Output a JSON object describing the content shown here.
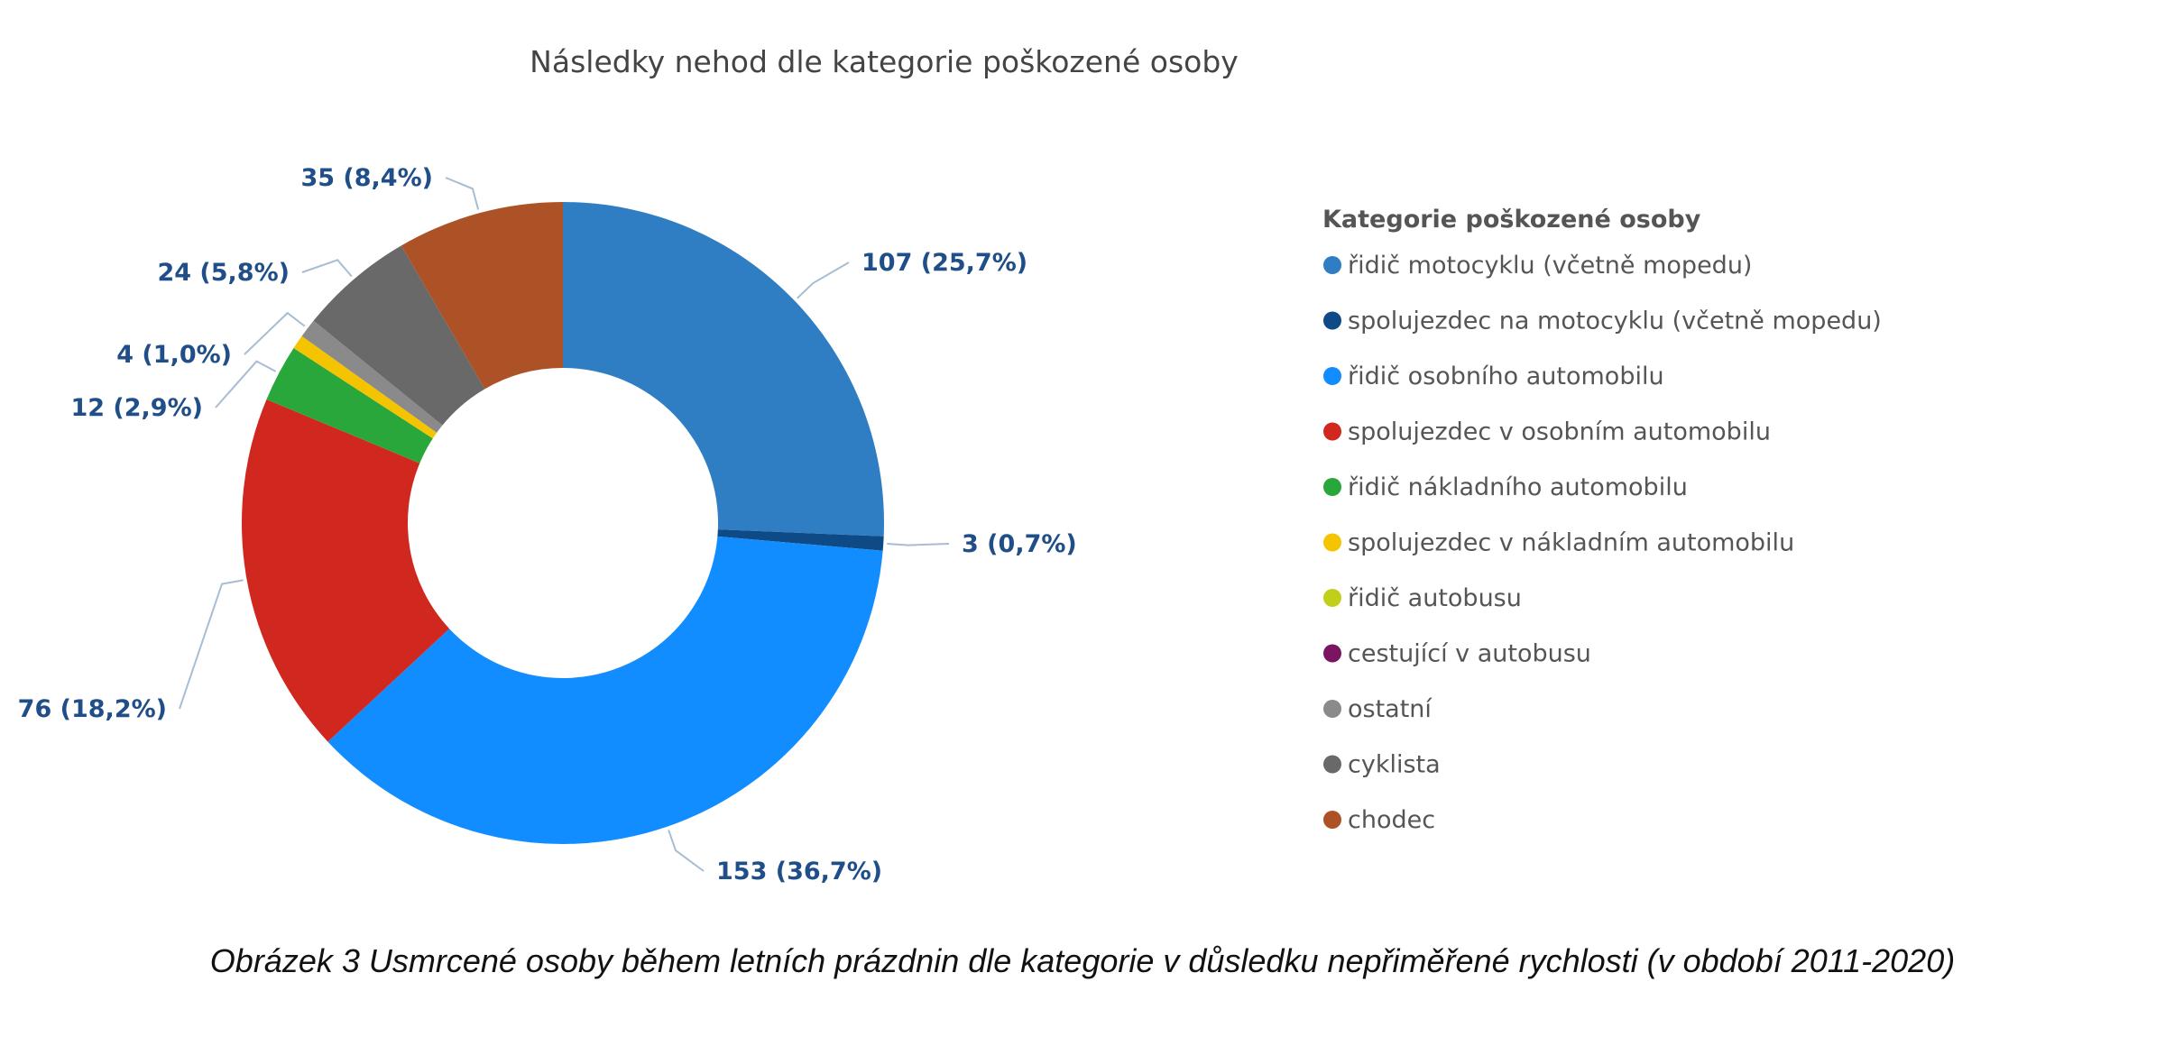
{
  "chart_data": {
    "type": "pie",
    "donut": true,
    "title": "Následky nehod dle kategorie poškozené osoby",
    "legend": {
      "title": "Kategorie poškozené osoby",
      "position": "right"
    },
    "label_color": "#1f4e88",
    "categories": [
      "řidič motocyklu (včetně mopedu)",
      "spolujezdec na motocyklu (včetně mopedu)",
      "řidič osobního automobilu",
      "spolujezdec v osobním automobilu",
      "řidič nákladního automobilu",
      "spolujezdec v nákladním automobilu",
      "řidič autobusu",
      "cestující v autobusu",
      "ostatní",
      "cyklista",
      "chodec"
    ],
    "values": [
      107,
      3,
      153,
      76,
      12,
      3,
      0,
      0,
      4,
      24,
      35
    ],
    "data_labels": [
      "107 (25,7%)",
      "3 (0,7%)",
      "153 (36,7%)",
      "76 (18,2%)",
      "12 (2,9%)",
      "",
      "",
      "",
      "4 (1,0%)",
      "24 (5,8%)",
      "35 (8,4%)"
    ],
    "colors": [
      "#2f7ec4",
      "#0e4a86",
      "#118dff",
      "#d0271f",
      "#2aa73a",
      "#f5c400",
      "#c2cf1a",
      "#7b1562",
      "#8a8a8a",
      "#696969",
      "#ad5227"
    ]
  },
  "caption": "Obrázek 3 Usmrcené osoby během letních prázdnin dle kategorie v důsledku nepřiměřené rychlosti (v období 2011-2020)"
}
